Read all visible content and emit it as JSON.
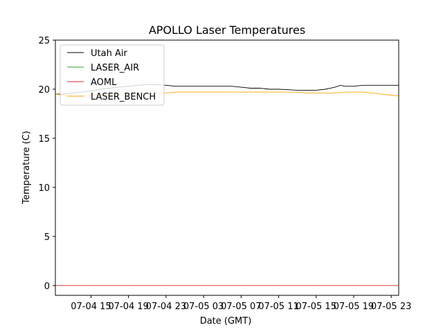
{
  "chart_data": {
    "type": "line",
    "title": "APOLLO Laser Temperatures",
    "xlabel": "Date (GMT)",
    "ylabel": "Temperature (C)",
    "x_unit": "hours since 07-04 00:00 GMT",
    "xlim": [
      11.2,
      47.8
    ],
    "ylim": [
      -1,
      25
    ],
    "yticks": [
      0,
      5,
      10,
      15,
      20,
      25
    ],
    "xticks": [
      {
        "value": 15,
        "label": "07-04 15"
      },
      {
        "value": 19,
        "label": "07-04 19"
      },
      {
        "value": 23,
        "label": "07-04 23"
      },
      {
        "value": 27,
        "label": "07-05 03"
      },
      {
        "value": 31,
        "label": "07-05 07"
      },
      {
        "value": 35,
        "label": "07-05 11"
      },
      {
        "value": 39,
        "label": "07-05 15"
      },
      {
        "value": 43,
        "label": "07-05 19"
      },
      {
        "value": 47,
        "label": "07-05 23"
      }
    ],
    "legend_position": "top-left",
    "series": [
      {
        "name": "Utah Air",
        "color": "#000000",
        "x": [
          11.2,
          12,
          13,
          14,
          15,
          16,
          17,
          18,
          19,
          20,
          21,
          22,
          23,
          24,
          25,
          26,
          27,
          28,
          29,
          30,
          31,
          32,
          33,
          34,
          35,
          36,
          37,
          38,
          39,
          40,
          41,
          41.6,
          42,
          43,
          44,
          45,
          46,
          47,
          47.8
        ],
        "values": [
          19.5,
          19.5,
          19.6,
          19.7,
          19.8,
          20.0,
          20.1,
          20.2,
          20.3,
          20.4,
          20.5,
          20.45,
          20.4,
          20.3,
          20.3,
          20.3,
          20.3,
          20.3,
          20.3,
          20.3,
          20.2,
          20.1,
          20.1,
          20.0,
          20.0,
          19.95,
          19.9,
          19.9,
          19.9,
          20.0,
          20.2,
          20.4,
          20.3,
          20.3,
          20.4,
          20.4,
          20.4,
          20.4,
          20.4
        ]
      },
      {
        "name": "LASER_AIR",
        "color": "#2ca02c",
        "x": [],
        "values": []
      },
      {
        "name": "AOML",
        "color": "#d62728",
        "x": [
          11.2,
          47.8
        ],
        "values": [
          0,
          0
        ]
      },
      {
        "name": "LASER_BENCH",
        "color": "#ffa500",
        "x": [
          11.2,
          12,
          13,
          14,
          15,
          16,
          17,
          18,
          19,
          20,
          21,
          22,
          23,
          24,
          25,
          26,
          27,
          28,
          29,
          30,
          31,
          32,
          33,
          34,
          35,
          36,
          37,
          38,
          39,
          40,
          41,
          42,
          43,
          44,
          45,
          46,
          47,
          47.8
        ],
        "values": [
          19.5,
          19.4,
          19.3,
          19.3,
          19.4,
          19.4,
          19.4,
          19.5,
          19.5,
          19.6,
          19.6,
          19.6,
          19.6,
          19.7,
          19.7,
          19.7,
          19.7,
          19.7,
          19.7,
          19.7,
          19.7,
          19.7,
          19.7,
          19.7,
          19.7,
          19.7,
          19.7,
          19.6,
          19.6,
          19.6,
          19.6,
          19.7,
          19.7,
          19.7,
          19.6,
          19.5,
          19.4,
          19.3
        ]
      }
    ]
  }
}
